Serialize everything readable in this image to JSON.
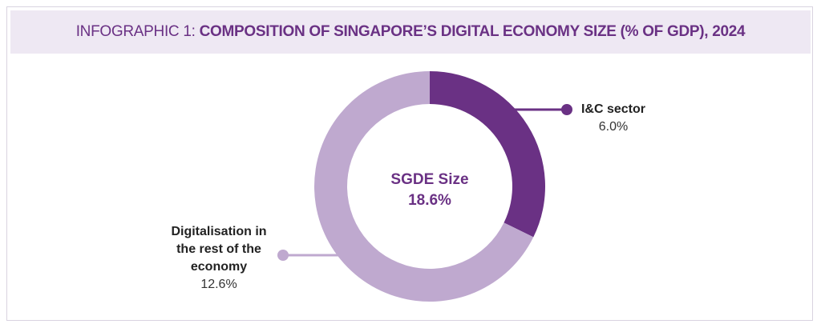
{
  "header": {
    "prefix": "INFOGRAPHIC 1:",
    "title": "COMPOSITION OF SINGAPORE’S DIGITAL ECONOMY SIZE (% OF GDP), 2024"
  },
  "chart_data": {
    "type": "pie",
    "title": "INFOGRAPHIC 1: COMPOSITION OF SINGAPORE’S DIGITAL ECONOMY SIZE (% OF GDP), 2024",
    "center_label": "SGDE Size",
    "center_value": "18.6%",
    "total": 18.6,
    "slices": [
      {
        "name": "I&C sector",
        "value": 6.0,
        "value_label": "6.0%",
        "color": "#6a3184"
      },
      {
        "name": "Digitalisation in the rest of the economy",
        "name_lines": [
          "Digitalisation in",
          "the rest of the",
          "economy"
        ],
        "value": 12.6,
        "value_label": "12.6%",
        "color": "#bfa9cf"
      }
    ]
  }
}
